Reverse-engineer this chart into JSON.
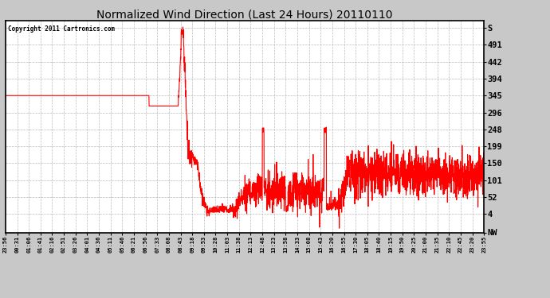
{
  "title": "Normalized Wind Direction (Last 24 Hours) 20110110",
  "copyright": "Copyright 2011 Cartronics.com",
  "fig_bg_color": "#c8c8c8",
  "plot_bg_color": "#ffffff",
  "line_color": "red",
  "ytick_labels": [
    "NW",
    "4",
    "52",
    "101",
    "150",
    "199",
    "248",
    "296",
    "345",
    "394",
    "442",
    "491",
    "S"
  ],
  "ytick_values": [
    -49,
    4,
    52,
    101,
    150,
    199,
    248,
    296,
    345,
    394,
    442,
    491,
    540
  ],
  "ylim": [
    -49,
    560
  ],
  "xtick_labels": [
    "23:56",
    "00:31",
    "01:06",
    "01:41",
    "02:16",
    "02:51",
    "03:26",
    "04:01",
    "04:36",
    "05:11",
    "05:46",
    "06:21",
    "06:56",
    "07:33",
    "08:08",
    "08:43",
    "09:18",
    "09:53",
    "10:28",
    "11:03",
    "11:38",
    "12:13",
    "12:48",
    "13:23",
    "13:58",
    "14:33",
    "15:08",
    "15:43",
    "16:20",
    "16:55",
    "17:30",
    "18:05",
    "18:40",
    "19:15",
    "19:50",
    "20:25",
    "21:00",
    "21:35",
    "22:10",
    "22:45",
    "23:20",
    "23:55"
  ]
}
